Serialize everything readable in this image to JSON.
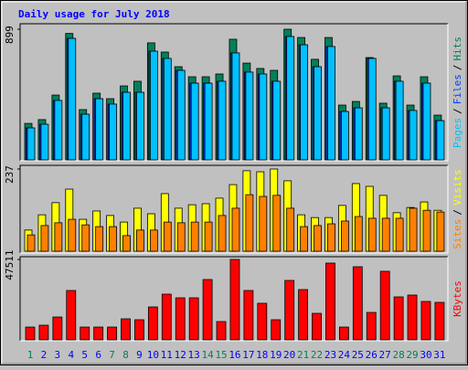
{
  "chart_data": [
    {
      "type": "bar",
      "title": "Daily usage for July 2018",
      "ylim": [
        0,
        899
      ],
      "yticks": [
        899
      ],
      "label_separator": "/",
      "series": [
        {
          "name": "Hits",
          "color": "#00805c",
          "values": [
            251,
            277,
            446,
            870,
            346,
            459,
            421,
            509,
            541,
            805,
            742,
            641,
            572,
            572,
            591,
            830,
            666,
            629,
            616,
            899,
            842,
            692,
            842,
            377,
            402,
            704,
            390,
            578,
            377,
            572,
            308
          ]
        },
        {
          "name": "Files",
          "color": "#0040ff",
          "values": [
            220,
            245,
            409,
            836,
            314,
            421,
            384,
            465,
            465,
            748,
            698,
            616,
            528,
            528,
            541,
            736,
            604,
            591,
            541,
            849,
            792,
            641,
            780,
            333,
            358,
            698,
            358,
            541,
            340,
            528,
            270
          ]
        },
        {
          "name": "Pages",
          "color": "#00c0ff",
          "values": [
            220,
            245,
            409,
            836,
            314,
            421,
            384,
            465,
            465,
            748,
            698,
            616,
            528,
            528,
            541,
            736,
            604,
            591,
            541,
            849,
            792,
            641,
            780,
            333,
            358,
            698,
            358,
            541,
            340,
            528,
            270
          ]
        }
      ]
    },
    {
      "type": "bar",
      "ylim": [
        0,
        237
      ],
      "yticks": [
        237
      ],
      "label_separator": "/",
      "series": [
        {
          "name": "Visits",
          "color": "#ffff00",
          "values": [
            61,
            105,
            140,
            179,
            92,
            116,
            103,
            84,
            124,
            108,
            166,
            124,
            134,
            137,
            153,
            192,
            232,
            229,
            237,
            203,
            105,
            97,
            97,
            132,
            195,
            187,
            161,
            111,
            126,
            142,
            118
          ]
        },
        {
          "name": "Sites",
          "color": "#ff8000",
          "values": [
            47,
            74,
            82,
            92,
            76,
            71,
            71,
            45,
            61,
            61,
            84,
            82,
            84,
            84,
            103,
            124,
            163,
            158,
            161,
            124,
            71,
            74,
            79,
            87,
            100,
            95,
            95,
            95,
            124,
            118,
            113
          ]
        }
      ]
    },
    {
      "type": "bar",
      "ylim": [
        0,
        47511
      ],
      "yticks": [
        47511
      ],
      "categories": [
        "1",
        "2",
        "3",
        "4",
        "5",
        "6",
        "7",
        "8",
        "9",
        "10",
        "11",
        "12",
        "13",
        "14",
        "15",
        "16",
        "17",
        "18",
        "19",
        "20",
        "21",
        "22",
        "23",
        "24",
        "25",
        "26",
        "27",
        "28",
        "29",
        "30",
        "31"
      ],
      "category_colors": [
        "#00805c",
        "#0000ff",
        "#0000ff",
        "#0000ff",
        "#0000ff",
        "#0000ff",
        "#00805c",
        "#00805c",
        "#0000ff",
        "#0000ff",
        "#0000ff",
        "#0000ff",
        "#0000ff",
        "#00805c",
        "#00805c",
        "#0000ff",
        "#0000ff",
        "#0000ff",
        "#0000ff",
        "#0000ff",
        "#00805c",
        "#00805c",
        "#0000ff",
        "#0000ff",
        "#0000ff",
        "#0000ff",
        "#0000ff",
        "#00805c",
        "#00805c",
        "#0000ff",
        "#0000ff"
      ],
      "series": [
        {
          "name": "KBytes",
          "color": "#ff0000",
          "values": [
            7560,
            8640,
            13500,
            29160,
            7560,
            7560,
            7560,
            12420,
            11880,
            19440,
            27000,
            24840,
            24840,
            35640,
            10800,
            47511,
            29160,
            21600,
            11880,
            35100,
            29700,
            15660,
            45360,
            7560,
            43200,
            16200,
            40500,
            25380,
            26460,
            22680,
            22140
          ]
        }
      ]
    }
  ]
}
